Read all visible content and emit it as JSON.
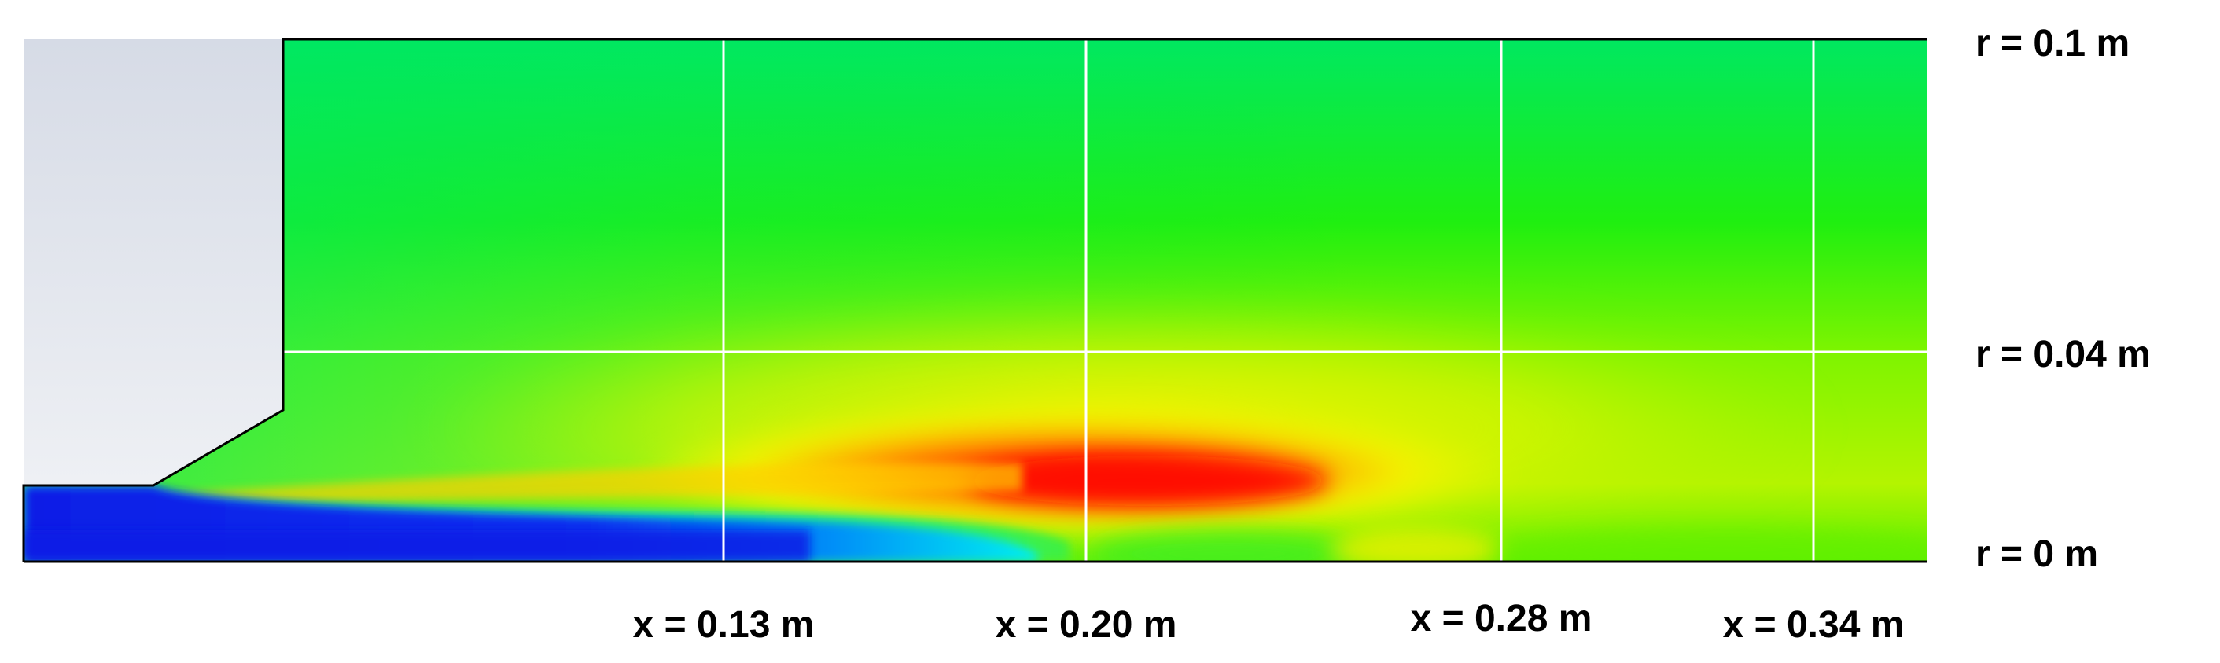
{
  "figure": {
    "radial_labels": [
      "r = 0.1 m",
      "r = 0.04 m",
      "r = 0 m"
    ],
    "axial_labels": [
      "x = 0.13 m",
      "x = 0.20 m",
      "x = 0.28 m",
      "x = 0.34 m"
    ]
  },
  "colors": {
    "solid_body": "#dde2ea",
    "low_value": "#0a1ee6",
    "mid_low": "#00e6f0",
    "mid": "#00ee44",
    "mid_high": "#f8f800",
    "high": "#ff0000",
    "grid_lines": "#ffffff",
    "outline": "#000000"
  }
}
